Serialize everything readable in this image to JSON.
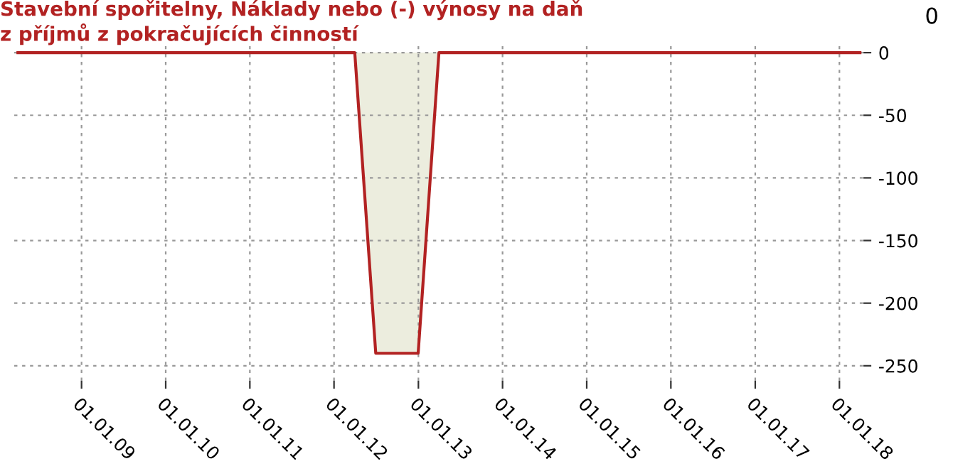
{
  "chart_data": {
    "type": "area",
    "title": "Stavební spořitelny, Náklady nebo (-) výnosy na daň\nz příjmů z pokračujících činností",
    "x": [
      "2008-03-31",
      "2011-12-31",
      "2012-03-31",
      "2012-06-30",
      "2012-09-30",
      "2012-12-31",
      "2013-03-31",
      "2013-06-30",
      "2018-03-31"
    ],
    "series": [
      {
        "color": "#b22222",
        "values": [
          0,
          0,
          0,
          -240,
          -240,
          -240,
          0,
          0,
          0
        ]
      }
    ],
    "xlim": [
      "2008-03-15",
      "2018-04-15"
    ],
    "ylim": [
      -262,
      8
    ],
    "xticks": [
      {
        "value": "2009-01-01",
        "label": "01.01.09"
      },
      {
        "value": "2010-01-01",
        "label": "01.01.10"
      },
      {
        "value": "2011-01-01",
        "label": "01.01.11"
      },
      {
        "value": "2012-01-01",
        "label": "01.01.12"
      },
      {
        "value": "2013-01-01",
        "label": "01.01.13"
      },
      {
        "value": "2014-01-01",
        "label": "01.01.14"
      },
      {
        "value": "2015-01-01",
        "label": "01.01.15"
      },
      {
        "value": "2016-01-01",
        "label": "01.01.16"
      },
      {
        "value": "2017-01-01",
        "label": "01.01.17"
      },
      {
        "value": "2018-01-01",
        "label": "01.01.18"
      }
    ],
    "yticks": [
      0,
      -50,
      -100,
      -150,
      -200,
      -250
    ],
    "grid": true,
    "marker": "none",
    "line_style": "solid",
    "annotations": [
      "0"
    ]
  }
}
